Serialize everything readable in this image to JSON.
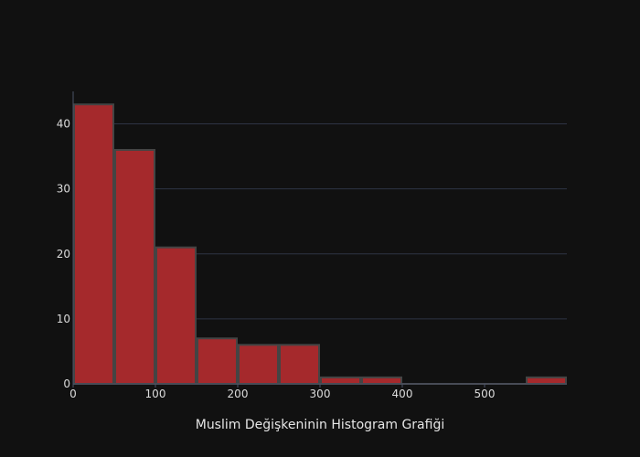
{
  "chart_data": {
    "type": "bar",
    "title": "",
    "xlabel": "Muslim Değişkeninin Histogram Grafiği",
    "ylabel": "",
    "bin_width": 50,
    "bins": [
      {
        "start": 0,
        "end": 50,
        "count": 43
      },
      {
        "start": 50,
        "end": 100,
        "count": 36
      },
      {
        "start": 100,
        "end": 150,
        "count": 21
      },
      {
        "start": 150,
        "end": 200,
        "count": 7
      },
      {
        "start": 200,
        "end": 250,
        "count": 6
      },
      {
        "start": 250,
        "end": 300,
        "count": 6
      },
      {
        "start": 300,
        "end": 350,
        "count": 1
      },
      {
        "start": 350,
        "end": 400,
        "count": 1
      },
      {
        "start": 400,
        "end": 450,
        "count": 0
      },
      {
        "start": 450,
        "end": 500,
        "count": 0
      },
      {
        "start": 500,
        "end": 550,
        "count": 0
      },
      {
        "start": 550,
        "end": 600,
        "count": 1
      }
    ],
    "xlim": [
      0,
      600
    ],
    "ylim": [
      0,
      45
    ],
    "x_ticks": [
      "0",
      "100",
      "200",
      "300",
      "400",
      "500"
    ],
    "y_ticks": [
      "0",
      "10",
      "20",
      "30",
      "40"
    ],
    "grid": true,
    "colors": {
      "background": "#111111",
      "bar_fill": "#a5292c",
      "bar_outline": "#444444",
      "grid": "#2e3444",
      "axis": "#4a5266",
      "text": "#dcdcdc"
    }
  }
}
